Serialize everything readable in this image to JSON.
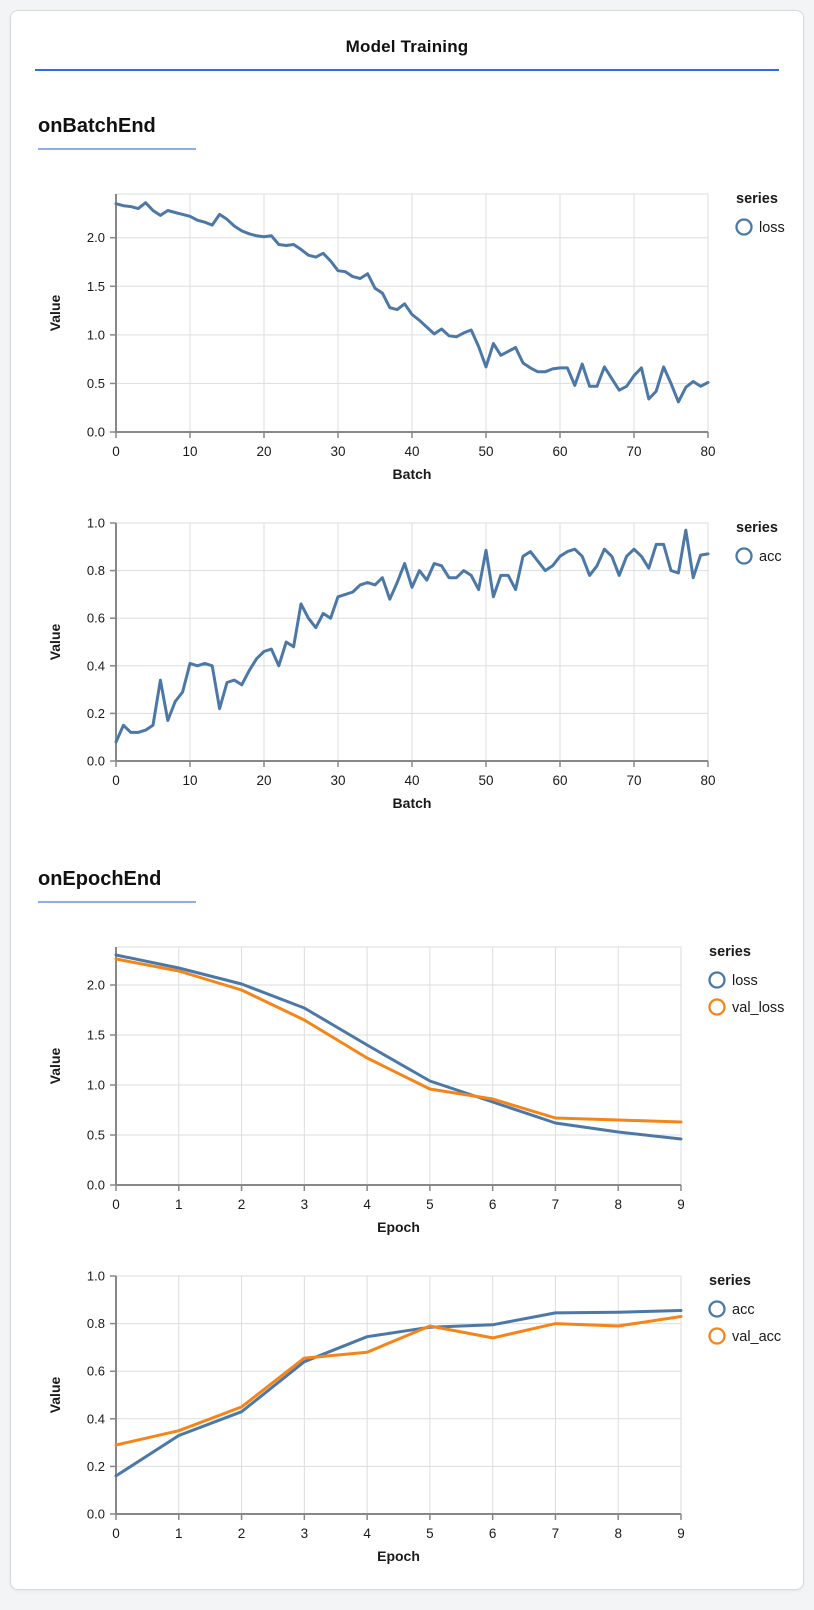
{
  "page": {
    "title": "Model Training"
  },
  "sections": [
    {
      "heading": "onBatchEnd"
    },
    {
      "heading": "onEpochEnd"
    }
  ],
  "colors": {
    "series_blue": "#4c78a8",
    "series_orange": "#f58518",
    "grid": "#dddddd",
    "axis": "#888888",
    "label": "#1a1a1a",
    "title_rule": "#2a6ee8",
    "section_rule": "#8fadea"
  },
  "chart_data": [
    {
      "type": "line",
      "section": 0,
      "xlabel": "Batch",
      "ylabel": "Value",
      "legend_title": "series",
      "legend_position": "right",
      "grid": true,
      "xlim": [
        0,
        80
      ],
      "ylim": [
        0,
        2.45
      ],
      "xticks": [
        0,
        10,
        20,
        30,
        40,
        50,
        60,
        70,
        80
      ],
      "yticks": [
        0,
        0.5,
        1,
        1.5,
        2
      ],
      "x": [
        0,
        1,
        2,
        3,
        4,
        5,
        6,
        7,
        8,
        9,
        10,
        11,
        12,
        13,
        14,
        15,
        16,
        17,
        18,
        19,
        20,
        21,
        22,
        23,
        24,
        25,
        26,
        27,
        28,
        29,
        30,
        31,
        32,
        33,
        34,
        35,
        36,
        37,
        38,
        39,
        40,
        41,
        42,
        43,
        44,
        45,
        46,
        47,
        48,
        49,
        50,
        51,
        52,
        53,
        54,
        55,
        56,
        57,
        58,
        59,
        60,
        61,
        62,
        63,
        64,
        65,
        66,
        67,
        68,
        69,
        70,
        71,
        72,
        73,
        74,
        75,
        76,
        77,
        78,
        79,
        80
      ],
      "series": [
        {
          "name": "loss",
          "color": "#4c78a8",
          "values": [
            2.35,
            2.33,
            2.32,
            2.3,
            2.36,
            2.28,
            2.23,
            2.28,
            2.26,
            2.24,
            2.22,
            2.18,
            2.16,
            2.13,
            2.24,
            2.19,
            2.12,
            2.07,
            2.04,
            2.02,
            2.01,
            2.02,
            1.93,
            1.92,
            1.93,
            1.88,
            1.82,
            1.8,
            1.84,
            1.76,
            1.66,
            1.65,
            1.6,
            1.58,
            1.63,
            1.48,
            1.43,
            1.28,
            1.26,
            1.32,
            1.21,
            1.15,
            1.08,
            1.01,
            1.06,
            0.99,
            0.98,
            1.02,
            1.05,
            0.88,
            0.67,
            0.91,
            0.79,
            0.83,
            0.87,
            0.71,
            0.66,
            0.62,
            0.62,
            0.65,
            0.66,
            0.66,
            0.48,
            0.7,
            0.47,
            0.47,
            0.67,
            0.55,
            0.43,
            0.47,
            0.58,
            0.66,
            0.34,
            0.42,
            0.67,
            0.5,
            0.31,
            0.46,
            0.52,
            0.47,
            0.51
          ]
        }
      ]
    },
    {
      "type": "line",
      "section": 0,
      "xlabel": "Batch",
      "ylabel": "Value",
      "legend_title": "series",
      "legend_position": "right",
      "grid": true,
      "xlim": [
        0,
        80
      ],
      "ylim": [
        0,
        1.0
      ],
      "xticks": [
        0,
        10,
        20,
        30,
        40,
        50,
        60,
        70,
        80
      ],
      "yticks": [
        0,
        0.2,
        0.4,
        0.6,
        0.8,
        1
      ],
      "x": [
        0,
        1,
        2,
        3,
        4,
        5,
        6,
        7,
        8,
        9,
        10,
        11,
        12,
        13,
        14,
        15,
        16,
        17,
        18,
        19,
        20,
        21,
        22,
        23,
        24,
        25,
        26,
        27,
        28,
        29,
        30,
        31,
        32,
        33,
        34,
        35,
        36,
        37,
        38,
        39,
        40,
        41,
        42,
        43,
        44,
        45,
        46,
        47,
        48,
        49,
        50,
        51,
        52,
        53,
        54,
        55,
        56,
        57,
        58,
        59,
        60,
        61,
        62,
        63,
        64,
        65,
        66,
        67,
        68,
        69,
        70,
        71,
        72,
        73,
        74,
        75,
        76,
        77,
        78,
        79,
        80
      ],
      "series": [
        {
          "name": "acc",
          "color": "#4c78a8",
          "values": [
            0.08,
            0.15,
            0.12,
            0.12,
            0.13,
            0.15,
            0.34,
            0.17,
            0.25,
            0.29,
            0.41,
            0.4,
            0.41,
            0.4,
            0.22,
            0.33,
            0.34,
            0.32,
            0.38,
            0.43,
            0.46,
            0.47,
            0.4,
            0.5,
            0.48,
            0.66,
            0.6,
            0.56,
            0.62,
            0.6,
            0.69,
            0.7,
            0.71,
            0.74,
            0.75,
            0.74,
            0.77,
            0.68,
            0.75,
            0.83,
            0.73,
            0.8,
            0.76,
            0.83,
            0.82,
            0.77,
            0.77,
            0.8,
            0.78,
            0.72,
            0.885,
            0.69,
            0.78,
            0.78,
            0.72,
            0.86,
            0.88,
            0.84,
            0.8,
            0.82,
            0.86,
            0.88,
            0.89,
            0.86,
            0.78,
            0.82,
            0.89,
            0.86,
            0.78,
            0.86,
            0.89,
            0.86,
            0.81,
            0.91,
            0.91,
            0.8,
            0.79,
            0.97,
            0.77,
            0.865,
            0.87
          ]
        }
      ]
    },
    {
      "type": "line",
      "section": 1,
      "xlabel": "Epoch",
      "ylabel": "Value",
      "legend_title": "series",
      "legend_position": "right",
      "grid": true,
      "xlim": [
        0,
        9
      ],
      "ylim": [
        0,
        2.38
      ],
      "xticks": [
        0,
        1,
        2,
        3,
        4,
        5,
        6,
        7,
        8,
        9
      ],
      "yticks": [
        0,
        0.5,
        1,
        1.5,
        2
      ],
      "x": [
        0,
        1,
        2,
        3,
        4,
        5,
        6,
        7,
        8,
        9
      ],
      "series": [
        {
          "name": "loss",
          "color": "#4c78a8",
          "values": [
            2.3,
            2.17,
            2.01,
            1.77,
            1.4,
            1.04,
            0.83,
            0.62,
            0.53,
            0.46
          ]
        },
        {
          "name": "val_loss",
          "color": "#f58518",
          "values": [
            2.26,
            2.14,
            1.95,
            1.65,
            1.27,
            0.96,
            0.86,
            0.67,
            0.65,
            0.63
          ]
        }
      ]
    },
    {
      "type": "line",
      "section": 1,
      "xlabel": "Epoch",
      "ylabel": "Value",
      "legend_title": "series",
      "legend_position": "right",
      "grid": true,
      "xlim": [
        0,
        9
      ],
      "ylim": [
        0,
        1.0
      ],
      "xticks": [
        0,
        1,
        2,
        3,
        4,
        5,
        6,
        7,
        8,
        9
      ],
      "yticks": [
        0,
        0.2,
        0.4,
        0.6,
        0.8,
        1
      ],
      "x": [
        0,
        1,
        2,
        3,
        4,
        5,
        6,
        7,
        8,
        9
      ],
      "series": [
        {
          "name": "acc",
          "color": "#4c78a8",
          "values": [
            0.16,
            0.33,
            0.43,
            0.64,
            0.745,
            0.785,
            0.795,
            0.845,
            0.848,
            0.855
          ]
        },
        {
          "name": "val_acc",
          "color": "#f58518",
          "values": [
            0.29,
            0.35,
            0.45,
            0.655,
            0.68,
            0.79,
            0.74,
            0.8,
            0.79,
            0.83
          ]
        }
      ]
    }
  ]
}
